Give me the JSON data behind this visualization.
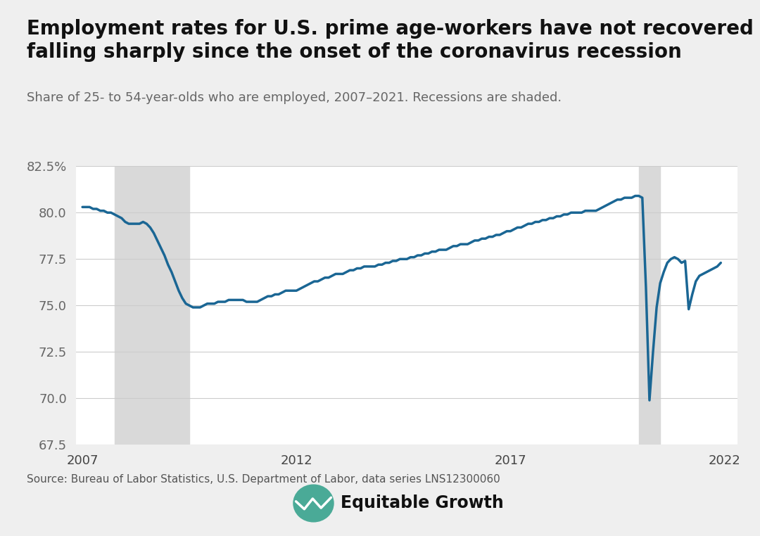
{
  "title": "Employment rates for U.S. prime age-workers have not recovered after\nfalling sharply since the onset of the coronavirus recession",
  "subtitle": "Share of 25- to 54-year-olds who are employed, 2007–2021. Recessions are shaded.",
  "source": "Source: Bureau of Labor Statistics, U.S. Department of Labor, data series LNS12300060",
  "logo_text": "Equitable Growth",
  "line_color": "#1a6694",
  "line_width": 2.5,
  "recession_color": "#d9d9d9",
  "background_color": "#efefef",
  "plot_bg_color": "#ffffff",
  "ylim": [
    67.5,
    82.5
  ],
  "yticks": [
    67.5,
    70.0,
    72.5,
    75.0,
    77.5,
    80.0,
    82.5
  ],
  "recessions": [
    {
      "start": 2007.75,
      "end": 2009.5
    },
    {
      "start": 2020.0,
      "end": 2020.5
    }
  ],
  "dates": [
    2007.0,
    2007.083,
    2007.167,
    2007.25,
    2007.333,
    2007.417,
    2007.5,
    2007.583,
    2007.667,
    2007.75,
    2007.833,
    2007.917,
    2008.0,
    2008.083,
    2008.167,
    2008.25,
    2008.333,
    2008.417,
    2008.5,
    2008.583,
    2008.667,
    2008.75,
    2008.833,
    2008.917,
    2009.0,
    2009.083,
    2009.167,
    2009.25,
    2009.333,
    2009.417,
    2009.5,
    2009.583,
    2009.667,
    2009.75,
    2009.833,
    2009.917,
    2010.0,
    2010.083,
    2010.167,
    2010.25,
    2010.333,
    2010.417,
    2010.5,
    2010.583,
    2010.667,
    2010.75,
    2010.833,
    2010.917,
    2011.0,
    2011.083,
    2011.167,
    2011.25,
    2011.333,
    2011.417,
    2011.5,
    2011.583,
    2011.667,
    2011.75,
    2011.833,
    2011.917,
    2012.0,
    2012.083,
    2012.167,
    2012.25,
    2012.333,
    2012.417,
    2012.5,
    2012.583,
    2012.667,
    2012.75,
    2012.833,
    2012.917,
    2013.0,
    2013.083,
    2013.167,
    2013.25,
    2013.333,
    2013.417,
    2013.5,
    2013.583,
    2013.667,
    2013.75,
    2013.833,
    2013.917,
    2014.0,
    2014.083,
    2014.167,
    2014.25,
    2014.333,
    2014.417,
    2014.5,
    2014.583,
    2014.667,
    2014.75,
    2014.833,
    2014.917,
    2015.0,
    2015.083,
    2015.167,
    2015.25,
    2015.333,
    2015.417,
    2015.5,
    2015.583,
    2015.667,
    2015.75,
    2015.833,
    2015.917,
    2016.0,
    2016.083,
    2016.167,
    2016.25,
    2016.333,
    2016.417,
    2016.5,
    2016.583,
    2016.667,
    2016.75,
    2016.833,
    2016.917,
    2017.0,
    2017.083,
    2017.167,
    2017.25,
    2017.333,
    2017.417,
    2017.5,
    2017.583,
    2017.667,
    2017.75,
    2017.833,
    2017.917,
    2018.0,
    2018.083,
    2018.167,
    2018.25,
    2018.333,
    2018.417,
    2018.5,
    2018.583,
    2018.667,
    2018.75,
    2018.833,
    2018.917,
    2019.0,
    2019.083,
    2019.167,
    2019.25,
    2019.333,
    2019.417,
    2019.5,
    2019.583,
    2019.667,
    2019.75,
    2019.833,
    2019.917,
    2020.0,
    2020.083,
    2020.167,
    2020.25,
    2020.333,
    2020.417,
    2020.5,
    2020.583,
    2020.667,
    2020.75,
    2020.833,
    2020.917,
    2021.0,
    2021.083,
    2021.167,
    2021.25,
    2021.333,
    2021.417,
    2021.5,
    2021.583,
    2021.667,
    2021.75,
    2021.833,
    2021.917
  ],
  "values": [
    80.3,
    80.3,
    80.3,
    80.2,
    80.2,
    80.1,
    80.1,
    80.0,
    80.0,
    79.9,
    79.8,
    79.7,
    79.5,
    79.4,
    79.4,
    79.4,
    79.4,
    79.5,
    79.4,
    79.2,
    78.9,
    78.5,
    78.1,
    77.7,
    77.2,
    76.8,
    76.3,
    75.8,
    75.4,
    75.1,
    75.0,
    74.9,
    74.9,
    74.9,
    75.0,
    75.1,
    75.1,
    75.1,
    75.2,
    75.2,
    75.2,
    75.3,
    75.3,
    75.3,
    75.3,
    75.3,
    75.2,
    75.2,
    75.2,
    75.2,
    75.3,
    75.4,
    75.5,
    75.5,
    75.6,
    75.6,
    75.7,
    75.8,
    75.8,
    75.8,
    75.8,
    75.9,
    76.0,
    76.1,
    76.2,
    76.3,
    76.3,
    76.4,
    76.5,
    76.5,
    76.6,
    76.7,
    76.7,
    76.7,
    76.8,
    76.9,
    76.9,
    77.0,
    77.0,
    77.1,
    77.1,
    77.1,
    77.1,
    77.2,
    77.2,
    77.3,
    77.3,
    77.4,
    77.4,
    77.5,
    77.5,
    77.5,
    77.6,
    77.6,
    77.7,
    77.7,
    77.8,
    77.8,
    77.9,
    77.9,
    78.0,
    78.0,
    78.0,
    78.1,
    78.2,
    78.2,
    78.3,
    78.3,
    78.3,
    78.4,
    78.5,
    78.5,
    78.6,
    78.6,
    78.7,
    78.7,
    78.8,
    78.8,
    78.9,
    79.0,
    79.0,
    79.1,
    79.2,
    79.2,
    79.3,
    79.4,
    79.4,
    79.5,
    79.5,
    79.6,
    79.6,
    79.7,
    79.7,
    79.8,
    79.8,
    79.9,
    79.9,
    80.0,
    80.0,
    80.0,
    80.0,
    80.1,
    80.1,
    80.1,
    80.1,
    80.2,
    80.3,
    80.4,
    80.5,
    80.6,
    80.7,
    80.7,
    80.8,
    80.8,
    80.8,
    80.9,
    80.9,
    80.8,
    76.0,
    69.9,
    72.5,
    74.9,
    76.2,
    76.8,
    77.3,
    77.5,
    77.6,
    77.5,
    77.3,
    77.4,
    74.8,
    75.6,
    76.3,
    76.6,
    76.7,
    76.8,
    76.9,
    77.0,
    77.1,
    77.3
  ],
  "xtick_positions": [
    2007,
    2012,
    2017,
    2022
  ],
  "xtick_labels": [
    "2007",
    "2012",
    "2017",
    "2022"
  ],
  "title_fontsize": 20,
  "subtitle_fontsize": 13,
  "tick_fontsize": 13,
  "source_fontsize": 11,
  "logo_fontsize": 17
}
